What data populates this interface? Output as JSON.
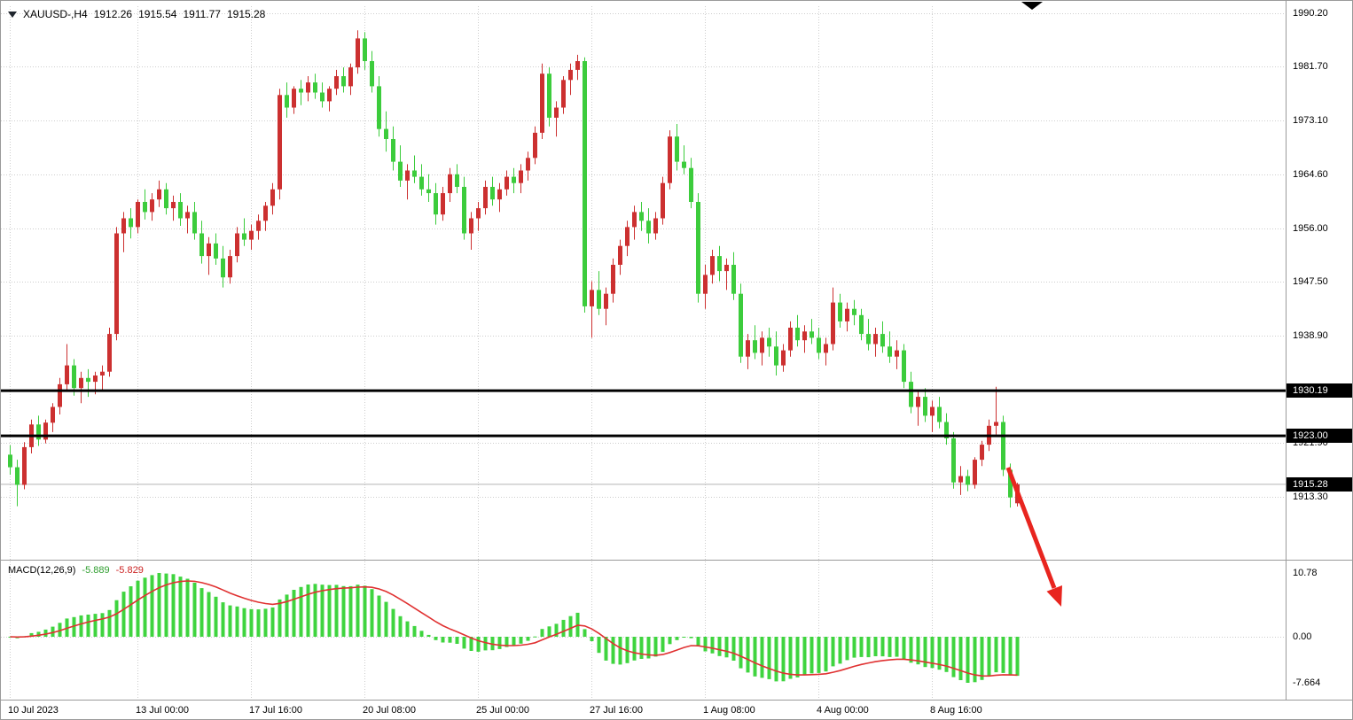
{
  "header": {
    "symbol_period": "XAUUSD-,H4",
    "open": "1912.26",
    "high": "1915.54",
    "low": "1911.77",
    "close": "1915.28"
  },
  "macd_panel": {
    "label": "MACD(12,26,9)",
    "macd_value": "-5.889",
    "signal_value": "-5.829",
    "scale_labels": [
      {
        "text": "10.78",
        "value": 10.78
      },
      {
        "text": "0.00",
        "value": 0
      },
      {
        "text": "-7.664",
        "value": -7.664
      }
    ]
  },
  "levels": {
    "resistance": {
      "label": "1930.19",
      "value": 1930.19
    },
    "support": {
      "label": "1923.00",
      "value": 1923.0
    },
    "current": {
      "label": "1915.28",
      "value": 1915.28
    }
  },
  "colors": {
    "bull": "#cc3030",
    "bear": "#3ccc3c",
    "histogram": "#3fd43f",
    "signal_line": "#e03131",
    "grid": "#cdcdcd",
    "level_line": "#000000",
    "bid_line": "#b4b4b4",
    "badge_bg": "#000000",
    "badge_text": "#ffffff",
    "arrow": "#e8251f"
  },
  "chart_data": {
    "type": "candlestick",
    "title": "XAUUSD-,H4",
    "symbol": "XAUUSD-",
    "timeframe": "H4",
    "bullish_color_convention": "red-up",
    "bearish_color_convention": "green-down",
    "bid_price": 1915.28,
    "horizontal_lines": [
      1930.19,
      1923.0
    ],
    "current_bar": {
      "open": 1912.26,
      "high": 1915.54,
      "low": 1911.77,
      "close": 1915.28
    },
    "price_axis_ticks": [
      {
        "text": "1990.20",
        "value": 1990.2
      },
      {
        "text": "1981.70",
        "value": 1981.7
      },
      {
        "text": "1973.10",
        "value": 1973.1
      },
      {
        "text": "1964.60",
        "value": 1964.6
      },
      {
        "text": "1956.00",
        "value": 1956.0
      },
      {
        "text": "1947.50",
        "value": 1947.5
      },
      {
        "text": "1938.90",
        "value": 1938.9
      },
      {
        "text": "1921.90",
        "value": 1921.9
      },
      {
        "text": "1913.30",
        "value": 1913.3
      }
    ],
    "time_axis_ticks": [
      {
        "text": "10 Jul 2023",
        "bar": 0
      },
      {
        "text": "13 Jul 00:00",
        "bar": 18
      },
      {
        "text": "17 Jul 16:00",
        "bar": 34
      },
      {
        "text": "20 Jul 08:00",
        "bar": 50
      },
      {
        "text": "25 Jul 00:00",
        "bar": 66
      },
      {
        "text": "27 Jul 16:00",
        "bar": 82
      },
      {
        "text": "1 Aug 08:00",
        "bar": 98
      },
      {
        "text": "4 Aug 00:00",
        "bar": 114
      },
      {
        "text": "8 Aug 16:00",
        "bar": 130
      }
    ],
    "indicator": {
      "name": "MACD",
      "fast": 12,
      "slow": 26,
      "signal": 9,
      "macd_current": -5.889,
      "signal_current": -5.829,
      "scale_max": 10.78,
      "scale_min": -7.664
    },
    "annotation": {
      "type": "arrow",
      "direction": "down-right"
    },
    "ohlc": [
      [
        1920.0,
        1921.5,
        1916.8,
        1918.0
      ],
      [
        1918.0,
        1919.2,
        1911.8,
        1915.2
      ],
      [
        1915.2,
        1922.0,
        1914.5,
        1921.2
      ],
      [
        1921.2,
        1925.6,
        1920.2,
        1924.8
      ],
      [
        1924.8,
        1926.2,
        1921.4,
        1922.4
      ],
      [
        1922.4,
        1925.6,
        1921.8,
        1925.1
      ],
      [
        1925.1,
        1928.2,
        1923.6,
        1927.6
      ],
      [
        1927.6,
        1932.2,
        1926.4,
        1931.2
      ],
      [
        1931.2,
        1937.6,
        1930.2,
        1934.2
      ],
      [
        1934.2,
        1935.2,
        1929.4,
        1930.6
      ],
      [
        1930.6,
        1933.2,
        1928.2,
        1932.2
      ],
      [
        1932.2,
        1933.6,
        1929.2,
        1931.6
      ],
      [
        1931.6,
        1933.2,
        1929.6,
        1932.6
      ],
      [
        1932.6,
        1934.2,
        1930.2,
        1933.2
      ],
      [
        1933.2,
        1940.2,
        1932.4,
        1939.2
      ],
      [
        1939.2,
        1956.2,
        1938.2,
        1955.2
      ],
      [
        1955.2,
        1958.6,
        1952.2,
        1957.6
      ],
      [
        1957.6,
        1959.2,
        1954.4,
        1956.2
      ],
      [
        1956.2,
        1960.6,
        1955.2,
        1960.2
      ],
      [
        1960.2,
        1962.2,
        1957.4,
        1958.6
      ],
      [
        1958.6,
        1961.6,
        1957.2,
        1960.6
      ],
      [
        1960.6,
        1963.6,
        1959.4,
        1962.2
      ],
      [
        1962.2,
        1963.2,
        1958.2,
        1959.2
      ],
      [
        1959.2,
        1961.2,
        1957.2,
        1960.2
      ],
      [
        1960.2,
        1961.6,
        1956.4,
        1957.6
      ],
      [
        1957.6,
        1959.6,
        1955.2,
        1958.6
      ],
      [
        1958.6,
        1960.2,
        1954.2,
        1955.2
      ],
      [
        1955.2,
        1957.2,
        1950.4,
        1951.6
      ],
      [
        1951.6,
        1954.6,
        1948.6,
        1953.6
      ],
      [
        1953.6,
        1955.2,
        1950.2,
        1951.2
      ],
      [
        1951.2,
        1953.2,
        1946.6,
        1948.2
      ],
      [
        1948.2,
        1952.6,
        1947.2,
        1951.6
      ],
      [
        1951.6,
        1956.2,
        1950.6,
        1955.2
      ],
      [
        1955.2,
        1957.6,
        1953.2,
        1954.2
      ],
      [
        1954.2,
        1956.6,
        1952.6,
        1955.6
      ],
      [
        1955.6,
        1958.2,
        1954.2,
        1957.2
      ],
      [
        1957.2,
        1960.2,
        1955.6,
        1959.6
      ],
      [
        1959.6,
        1963.2,
        1958.2,
        1962.2
      ],
      [
        1962.2,
        1978.2,
        1960.6,
        1977.2
      ],
      [
        1977.2,
        1979.2,
        1973.6,
        1975.2
      ],
      [
        1975.2,
        1978.6,
        1974.2,
        1978.2
      ],
      [
        1978.2,
        1979.6,
        1975.6,
        1977.6
      ],
      [
        1977.6,
        1980.2,
        1976.2,
        1979.2
      ],
      [
        1979.2,
        1980.6,
        1976.6,
        1977.6
      ],
      [
        1977.6,
        1979.2,
        1975.2,
        1976.2
      ],
      [
        1976.2,
        1978.6,
        1974.6,
        1978.2
      ],
      [
        1978.2,
        1981.2,
        1977.2,
        1980.2
      ],
      [
        1980.2,
        1981.6,
        1977.6,
        1978.6
      ],
      [
        1978.6,
        1982.2,
        1977.2,
        1981.6
      ],
      [
        1981.6,
        1987.5,
        1980.6,
        1986.2
      ],
      [
        1986.2,
        1987.2,
        1981.2,
        1982.6
      ],
      [
        1982.6,
        1984.2,
        1977.6,
        1978.6
      ],
      [
        1978.6,
        1980.2,
        1970.6,
        1971.8
      ],
      [
        1971.8,
        1974.6,
        1968.2,
        1970.2
      ],
      [
        1970.2,
        1972.2,
        1965.2,
        1966.6
      ],
      [
        1966.6,
        1969.2,
        1962.6,
        1963.6
      ],
      [
        1963.6,
        1966.2,
        1960.6,
        1965.2
      ],
      [
        1965.2,
        1967.6,
        1963.2,
        1964.2
      ],
      [
        1964.2,
        1966.2,
        1961.2,
        1962.2
      ],
      [
        1962.2,
        1964.6,
        1960.2,
        1961.6
      ],
      [
        1961.6,
        1963.2,
        1956.6,
        1958.2
      ],
      [
        1958.2,
        1962.6,
        1957.2,
        1961.6
      ],
      [
        1961.6,
        1965.6,
        1960.2,
        1964.6
      ],
      [
        1964.6,
        1966.2,
        1961.6,
        1962.6
      ],
      [
        1962.6,
        1964.2,
        1954.2,
        1955.2
      ],
      [
        1955.2,
        1958.6,
        1952.6,
        1957.6
      ],
      [
        1957.6,
        1960.2,
        1955.6,
        1959.2
      ],
      [
        1959.2,
        1963.6,
        1958.2,
        1962.6
      ],
      [
        1962.6,
        1964.2,
        1959.6,
        1960.6
      ],
      [
        1960.6,
        1963.2,
        1958.6,
        1962.2
      ],
      [
        1962.2,
        1965.2,
        1961.2,
        1964.2
      ],
      [
        1964.2,
        1965.6,
        1961.6,
        1963.2
      ],
      [
        1963.2,
        1966.2,
        1961.6,
        1965.2
      ],
      [
        1965.2,
        1968.2,
        1963.6,
        1967.2
      ],
      [
        1967.2,
        1972.2,
        1966.2,
        1971.2
      ],
      [
        1971.2,
        1982.2,
        1970.2,
        1980.6
      ],
      [
        1980.6,
        1981.6,
        1972.2,
        1973.6
      ],
      [
        1973.6,
        1976.2,
        1970.6,
        1975.2
      ],
      [
        1975.2,
        1980.2,
        1974.2,
        1979.6
      ],
      [
        1979.6,
        1982.2,
        1977.2,
        1981.2
      ],
      [
        1981.2,
        1983.6,
        1979.6,
        1982.6
      ],
      [
        1982.6,
        1983.2,
        1942.6,
        1943.6
      ],
      [
        1943.6,
        1947.6,
        1938.6,
        1946.2
      ],
      [
        1946.2,
        1949.2,
        1942.2,
        1943.2
      ],
      [
        1943.2,
        1946.6,
        1940.6,
        1945.6
      ],
      [
        1945.6,
        1951.2,
        1944.2,
        1950.2
      ],
      [
        1950.2,
        1954.2,
        1948.6,
        1953.2
      ],
      [
        1953.2,
        1957.2,
        1951.6,
        1956.2
      ],
      [
        1956.2,
        1959.6,
        1954.2,
        1958.6
      ],
      [
        1958.6,
        1960.2,
        1955.6,
        1957.2
      ],
      [
        1957.2,
        1959.2,
        1953.6,
        1955.2
      ],
      [
        1955.2,
        1958.6,
        1954.2,
        1957.6
      ],
      [
        1957.6,
        1964.2,
        1956.6,
        1963.2
      ],
      [
        1963.2,
        1971.6,
        1962.2,
        1970.6
      ],
      [
        1970.6,
        1972.6,
        1965.2,
        1966.6
      ],
      [
        1966.6,
        1969.2,
        1964.6,
        1965.6
      ],
      [
        1965.6,
        1967.2,
        1959.2,
        1960.2
      ],
      [
        1960.2,
        1961.6,
        1944.2,
        1945.6
      ],
      [
        1945.6,
        1950.2,
        1943.2,
        1948.6
      ],
      [
        1948.6,
        1952.6,
        1947.2,
        1951.6
      ],
      [
        1951.6,
        1953.2,
        1947.6,
        1949.2
      ],
      [
        1949.2,
        1951.2,
        1946.2,
        1950.2
      ],
      [
        1950.2,
        1952.2,
        1944.6,
        1945.6
      ],
      [
        1945.6,
        1947.2,
        1934.6,
        1935.6
      ],
      [
        1935.6,
        1939.2,
        1933.6,
        1938.2
      ],
      [
        1938.2,
        1940.6,
        1935.2,
        1936.2
      ],
      [
        1936.2,
        1939.6,
        1934.2,
        1938.6
      ],
      [
        1938.6,
        1940.2,
        1935.6,
        1937.2
      ],
      [
        1937.2,
        1939.6,
        1932.6,
        1934.2
      ],
      [
        1934.2,
        1937.6,
        1933.2,
        1936.6
      ],
      [
        1936.6,
        1941.2,
        1935.6,
        1940.2
      ],
      [
        1940.2,
        1942.2,
        1937.2,
        1938.2
      ],
      [
        1938.2,
        1940.6,
        1936.2,
        1939.6
      ],
      [
        1939.6,
        1941.6,
        1937.6,
        1938.6
      ],
      [
        1938.6,
        1940.2,
        1935.2,
        1936.2
      ],
      [
        1936.2,
        1938.6,
        1934.2,
        1937.6
      ],
      [
        1937.6,
        1946.6,
        1936.6,
        1944.2
      ],
      [
        1944.2,
        1945.6,
        1940.2,
        1941.2
      ],
      [
        1941.2,
        1944.2,
        1939.6,
        1943.2
      ],
      [
        1943.2,
        1944.6,
        1940.6,
        1942.2
      ],
      [
        1942.2,
        1943.2,
        1938.2,
        1939.2
      ],
      [
        1939.2,
        1941.6,
        1936.6,
        1937.6
      ],
      [
        1937.6,
        1940.2,
        1935.6,
        1939.2
      ],
      [
        1939.2,
        1941.2,
        1936.2,
        1937.2
      ],
      [
        1937.2,
        1939.6,
        1934.6,
        1935.6
      ],
      [
        1935.6,
        1938.2,
        1933.6,
        1936.6
      ],
      [
        1936.6,
        1937.6,
        1930.6,
        1931.6
      ],
      [
        1931.6,
        1933.2,
        1926.6,
        1927.6
      ],
      [
        1927.6,
        1930.2,
        1924.6,
        1929.2
      ],
      [
        1929.2,
        1930.6,
        1925.2,
        1926.2
      ],
      [
        1926.2,
        1928.6,
        1923.6,
        1927.6
      ],
      [
        1927.6,
        1929.2,
        1924.2,
        1925.2
      ],
      [
        1925.2,
        1926.6,
        1921.6,
        1922.6
      ],
      [
        1922.6,
        1923.6,
        1914.6,
        1915.6
      ],
      [
        1915.6,
        1918.2,
        1913.6,
        1916.6
      ],
      [
        1916.6,
        1917.6,
        1914.2,
        1915.2
      ],
      [
        1915.2,
        1919.6,
        1914.6,
        1919.2
      ],
      [
        1919.2,
        1922.2,
        1918.2,
        1921.6
      ],
      [
        1921.6,
        1925.6,
        1920.6,
        1924.6
      ],
      [
        1924.6,
        1930.8,
        1923.2,
        1925.2
      ],
      [
        1925.2,
        1926.2,
        1916.6,
        1917.6
      ],
      [
        1917.6,
        1918.6,
        1911.6,
        1913.2
      ],
      [
        1912.26,
        1915.54,
        1911.77,
        1915.28
      ]
    ]
  }
}
